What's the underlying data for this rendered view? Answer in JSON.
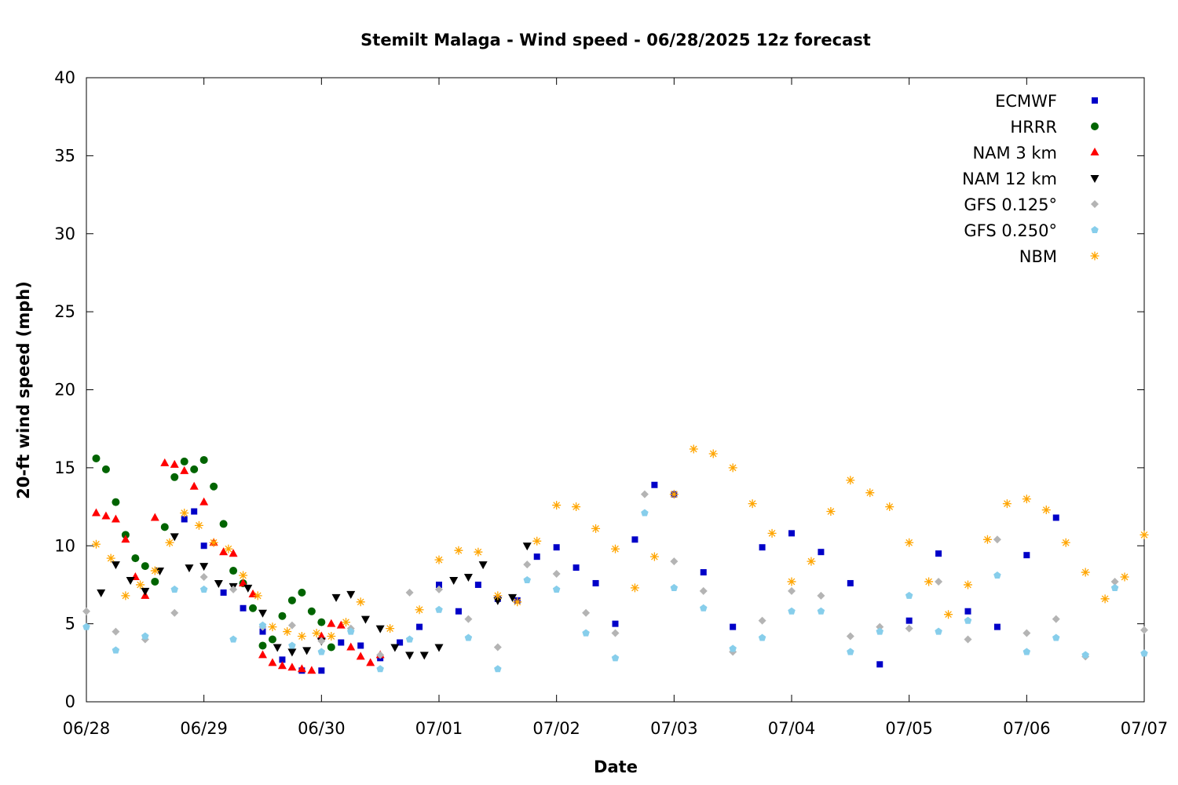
{
  "chart_data": {
    "type": "scatter",
    "title": "Stemilt Malaga - Wind speed - 06/28/2025 12z forecast",
    "xlabel": "Date",
    "ylabel": "20-ft wind speed (mph)",
    "x_unit": "days",
    "xlim": [
      "06/28",
      "07/07"
    ],
    "ylim": [
      0,
      40
    ],
    "y_ticks": [
      0,
      5,
      10,
      15,
      20,
      25,
      30,
      35,
      40
    ],
    "x_ticks": [
      "06/28",
      "06/29",
      "06/30",
      "07/01",
      "07/02",
      "07/03",
      "07/04",
      "07/05",
      "07/06",
      "07/07"
    ],
    "grid": false,
    "legend": {
      "position": "top-right"
    },
    "series": [
      {
        "name": "ECMWF",
        "color": "#0000c8",
        "marker": "square",
        "x": [
          "06/28 20:00",
          "06/28 22:00",
          "06/29 00:00",
          "06/29 04:00",
          "06/29 08:00",
          "06/29 12:00",
          "06/29 16:00",
          "06/29 20:00",
          "06/30 00:00",
          "06/30 04:00",
          "06/30 08:00",
          "06/30 12:00",
          "06/30 16:00",
          "06/30 20:00",
          "07/01 00:00",
          "07/01 04:00",
          "07/01 08:00",
          "07/01 12:00",
          "07/01 16:00",
          "07/01 20:00",
          "07/02 00:00",
          "07/02 04:00",
          "07/02 08:00",
          "07/02 12:00",
          "07/02 16:00",
          "07/02 20:00",
          "07/03 00:00",
          "07/03 06:00",
          "07/03 12:00",
          "07/03 18:00",
          "07/04 00:00",
          "07/04 06:00",
          "07/04 12:00",
          "07/04 18:00",
          "07/05 00:00",
          "07/05 06:00",
          "07/05 12:00",
          "07/05 18:00",
          "07/06 00:00",
          "07/06 06:00"
        ],
        "y": [
          11.7,
          12.2,
          10.0,
          7.0,
          6.0,
          4.5,
          2.7,
          2.0,
          2.0,
          3.8,
          3.6,
          2.8,
          3.8,
          4.8,
          7.5,
          5.8,
          7.5,
          6.6,
          6.5,
          9.3,
          9.9,
          8.6,
          7.6,
          5.0,
          10.4,
          13.9,
          13.3,
          8.3,
          4.8,
          9.9,
          10.8,
          9.6,
          7.6,
          2.4,
          5.2,
          9.5,
          5.8,
          4.8,
          9.4,
          11.8
        ]
      },
      {
        "name": "HRRR",
        "color": "#006400",
        "marker": "circle",
        "x": [
          "06/28 02:00",
          "06/28 04:00",
          "06/28 06:00",
          "06/28 08:00",
          "06/28 10:00",
          "06/28 12:00",
          "06/28 14:00",
          "06/28 16:00",
          "06/28 18:00",
          "06/28 20:00",
          "06/28 22:00",
          "06/29 00:00",
          "06/29 02:00",
          "06/29 04:00",
          "06/29 06:00",
          "06/29 08:00",
          "06/29 10:00",
          "06/29 12:00",
          "06/29 14:00",
          "06/29 16:00",
          "06/29 18:00",
          "06/29 20:00",
          "06/29 22:00",
          "06/30 00:00",
          "06/30 02:00"
        ],
        "y": [
          15.6,
          14.9,
          12.8,
          10.7,
          9.2,
          8.7,
          7.7,
          11.2,
          14.4,
          15.4,
          14.9,
          15.5,
          13.8,
          11.4,
          8.4,
          7.6,
          6.0,
          3.6,
          4.0,
          5.5,
          6.5,
          7.0,
          5.8,
          5.1,
          3.5
        ]
      },
      {
        "name": "NAM 3 km",
        "color": "#ff0000",
        "marker": "triangle-up",
        "x": [
          "06/28 02:00",
          "06/28 04:00",
          "06/28 06:00",
          "06/28 08:00",
          "06/28 10:00",
          "06/28 12:00",
          "06/28 14:00",
          "06/28 16:00",
          "06/28 18:00",
          "06/28 20:00",
          "06/28 22:00",
          "06/29 00:00",
          "06/29 02:00",
          "06/29 04:00",
          "06/29 06:00",
          "06/29 08:00",
          "06/29 10:00",
          "06/29 12:00",
          "06/29 14:00",
          "06/29 16:00",
          "06/29 18:00",
          "06/29 20:00",
          "06/29 22:00",
          "06/30 00:00",
          "06/30 02:00",
          "06/30 04:00",
          "06/30 06:00",
          "06/30 08:00",
          "06/30 10:00",
          "06/30 12:00"
        ],
        "y": [
          12.1,
          11.9,
          11.7,
          10.4,
          8.0,
          6.8,
          11.8,
          15.3,
          15.2,
          14.8,
          13.8,
          12.8,
          10.2,
          9.6,
          9.5,
          7.6,
          6.9,
          3.0,
          2.5,
          2.3,
          2.2,
          2.1,
          2.0,
          4.2,
          5.0,
          4.9,
          3.5,
          2.9,
          2.5,
          3.0
        ]
      },
      {
        "name": "NAM 12 km",
        "color": "#000000",
        "marker": "triangle-down",
        "x": [
          "06/28 03:00",
          "06/28 06:00",
          "06/28 09:00",
          "06/28 12:00",
          "06/28 15:00",
          "06/28 18:00",
          "06/28 21:00",
          "06/29 00:00",
          "06/29 03:00",
          "06/29 06:00",
          "06/29 09:00",
          "06/29 12:00",
          "06/29 15:00",
          "06/29 18:00",
          "06/29 21:00",
          "06/30 00:00",
          "06/30 03:00",
          "06/30 06:00",
          "06/30 09:00",
          "06/30 12:00",
          "06/30 15:00",
          "06/30 18:00",
          "06/30 21:00",
          "07/01 00:00",
          "07/01 03:00",
          "07/01 06:00",
          "07/01 09:00",
          "07/01 12:00",
          "07/01 15:00",
          "07/01 18:00"
        ],
        "y": [
          7.0,
          8.8,
          7.8,
          7.1,
          8.4,
          10.6,
          8.6,
          8.7,
          7.6,
          7.4,
          7.3,
          5.7,
          3.5,
          3.2,
          3.3,
          3.9,
          6.7,
          6.9,
          5.3,
          4.7,
          3.5,
          3.0,
          3.0,
          3.5,
          7.8,
          8.0,
          8.8,
          6.5,
          6.7,
          10.0
        ]
      },
      {
        "name": "GFS 0.125°",
        "color": "#b4b4b4",
        "marker": "diamond",
        "x": [
          "06/28 00:00",
          "06/28 06:00",
          "06/28 12:00",
          "06/28 18:00",
          "06/29 00:00",
          "06/29 06:00",
          "06/29 12:00",
          "06/29 18:00",
          "06/30 00:00",
          "06/30 06:00",
          "06/30 12:00",
          "06/30 18:00",
          "07/01 00:00",
          "07/01 06:00",
          "07/01 12:00",
          "07/01 18:00",
          "07/02 00:00",
          "07/02 06:00",
          "07/02 12:00",
          "07/02 18:00",
          "07/03 00:00",
          "07/03 06:00",
          "07/03 12:00",
          "07/03 18:00",
          "07/04 00:00",
          "07/04 06:00",
          "07/04 12:00",
          "07/04 18:00",
          "07/05 00:00",
          "07/05 06:00",
          "07/05 12:00",
          "07/05 18:00",
          "07/06 00:00",
          "07/06 06:00",
          "07/06 12:00",
          "07/06 18:00",
          "07/07 00:00"
        ],
        "y": [
          5.8,
          4.5,
          4.0,
          5.7,
          8.0,
          7.2,
          4.8,
          4.9,
          3.9,
          4.7,
          3.0,
          7.0,
          7.2,
          5.3,
          3.5,
          8.8,
          8.2,
          5.7,
          4.4,
          13.3,
          9.0,
          7.1,
          3.2,
          5.2,
          7.1,
          6.8,
          4.2,
          4.8,
          4.7,
          7.7,
          4.0,
          10.4,
          4.4,
          5.3,
          2.9,
          7.7,
          4.6
        ]
      },
      {
        "name": "GFS 0.250°",
        "color": "#87ceeb",
        "marker": "pentagon",
        "x": [
          "06/28 00:00",
          "06/28 06:00",
          "06/28 12:00",
          "06/28 18:00",
          "06/29 00:00",
          "06/29 06:00",
          "06/29 12:00",
          "06/29 18:00",
          "06/30 00:00",
          "06/30 06:00",
          "06/30 12:00",
          "06/30 18:00",
          "07/01 00:00",
          "07/01 06:00",
          "07/01 12:00",
          "07/01 18:00",
          "07/02 00:00",
          "07/02 06:00",
          "07/02 12:00",
          "07/02 18:00",
          "07/03 00:00",
          "07/03 06:00",
          "07/03 12:00",
          "07/03 18:00",
          "07/04 00:00",
          "07/04 06:00",
          "07/04 12:00",
          "07/04 18:00",
          "07/05 00:00",
          "07/05 06:00",
          "07/05 12:00",
          "07/05 18:00",
          "07/06 00:00",
          "07/06 06:00",
          "07/06 12:00",
          "07/06 18:00",
          "07/07 00:00"
        ],
        "y": [
          4.8,
          3.3,
          4.2,
          7.2,
          7.2,
          4.0,
          4.9,
          3.6,
          3.2,
          4.5,
          2.1,
          4.0,
          5.9,
          4.1,
          2.1,
          7.8,
          7.2,
          4.4,
          2.8,
          12.1,
          7.3,
          6.0,
          3.4,
          4.1,
          5.8,
          5.8,
          3.2,
          4.5,
          6.8,
          4.5,
          5.2,
          8.1,
          3.2,
          4.1,
          3.0,
          7.3,
          3.1
        ]
      },
      {
        "name": "NBM",
        "color": "#ffa500",
        "marker": "star",
        "x": [
          "06/28 02:00",
          "06/28 05:00",
          "06/28 08:00",
          "06/28 11:00",
          "06/28 14:00",
          "06/28 17:00",
          "06/28 20:00",
          "06/28 23:00",
          "06/29 02:00",
          "06/29 05:00",
          "06/29 08:00",
          "06/29 11:00",
          "06/29 14:00",
          "06/29 17:00",
          "06/29 20:00",
          "06/29 23:00",
          "06/30 02:00",
          "06/30 05:00",
          "06/30 08:00",
          "06/30 14:00",
          "06/30 20:00",
          "07/01 00:00",
          "07/01 04:00",
          "07/01 08:00",
          "07/01 12:00",
          "07/01 16:00",
          "07/01 20:00",
          "07/02 00:00",
          "07/02 04:00",
          "07/02 08:00",
          "07/02 12:00",
          "07/02 16:00",
          "07/02 20:00",
          "07/03 00:00",
          "07/03 04:00",
          "07/03 08:00",
          "07/03 12:00",
          "07/03 16:00",
          "07/03 20:00",
          "07/04 00:00",
          "07/04 04:00",
          "07/04 08:00",
          "07/04 12:00",
          "07/04 16:00",
          "07/04 20:00",
          "07/05 00:00",
          "07/05 04:00",
          "07/05 08:00",
          "07/05 12:00",
          "07/05 16:00",
          "07/05 20:00",
          "07/06 00:00",
          "07/06 04:00",
          "07/06 08:00",
          "07/06 12:00",
          "07/06 16:00",
          "07/06 20:00",
          "07/07 00:00"
        ],
        "y": [
          10.1,
          9.2,
          6.8,
          7.5,
          8.4,
          10.2,
          12.1,
          11.3,
          10.2,
          9.8,
          8.1,
          6.8,
          4.8,
          4.5,
          4.2,
          4.4,
          4.2,
          5.1,
          6.4,
          4.7,
          5.9,
          9.1,
          9.7,
          9.6,
          6.8,
          6.4,
          10.3,
          12.6,
          12.5,
          11.1,
          9.8,
          7.3,
          9.3,
          13.3,
          16.2,
          15.9,
          15.0,
          12.7,
          10.8,
          7.7,
          9.0,
          12.2,
          14.2,
          13.4,
          12.5,
          10.2,
          7.7,
          5.6,
          7.5,
          10.4,
          12.7,
          13.0,
          12.3,
          10.2,
          8.3,
          6.6,
          8.0,
          10.7
        ]
      }
    ]
  }
}
